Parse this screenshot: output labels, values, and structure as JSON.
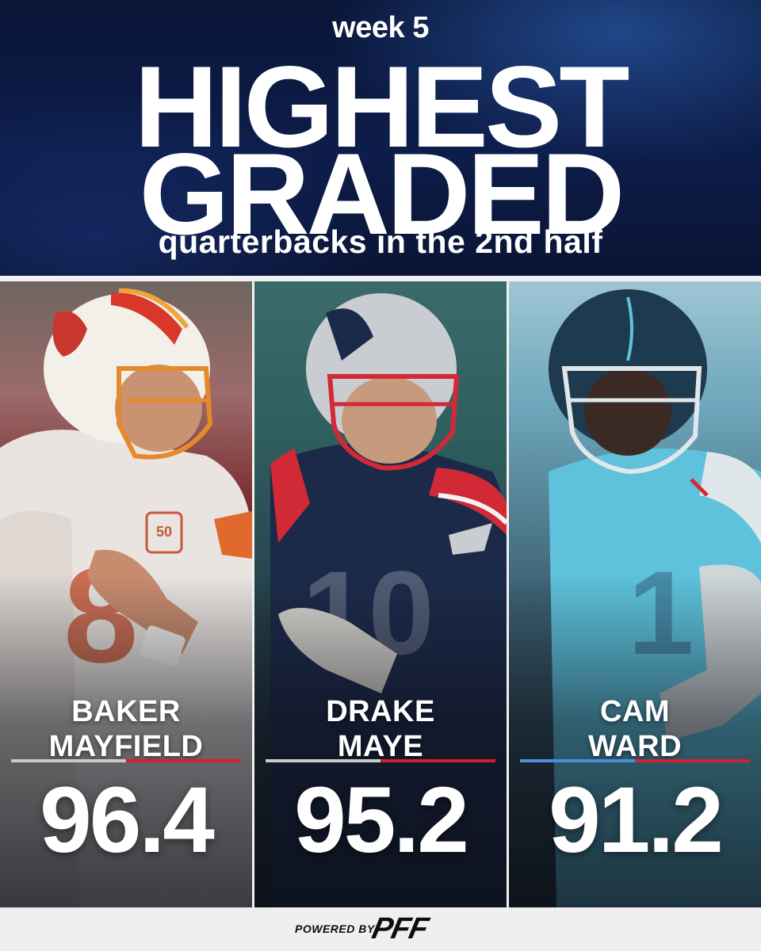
{
  "header": {
    "week": "week 5",
    "headline_line1": "HIGHEST",
    "headline_line2": "GRADED",
    "subtitle": "quarterbacks in the 2nd half"
  },
  "players": [
    {
      "first": "BAKER",
      "last": "MAYFIELD",
      "grade": "96.4",
      "accent_left": "#c9c9c9",
      "accent_right": "#d2202f",
      "team_logo": "buccaneers"
    },
    {
      "first": "DRAKE",
      "last": "MAYE",
      "grade": "95.2",
      "accent_left": "#c9c9c9",
      "accent_right": "#d2202f",
      "team_logo": "patriots"
    },
    {
      "first": "CAM",
      "last": "WARD",
      "grade": "91.2",
      "accent_left": "#4b8fdc",
      "accent_right": "#d2202f",
      "team_logo": "titans"
    }
  ],
  "footer": {
    "powered_by": "POWERED BY",
    "brand": "PFF"
  },
  "colors": {
    "header_bg": "#0d1d4a",
    "accent_red": "#d2202f",
    "footer_bg": "#efefef"
  }
}
